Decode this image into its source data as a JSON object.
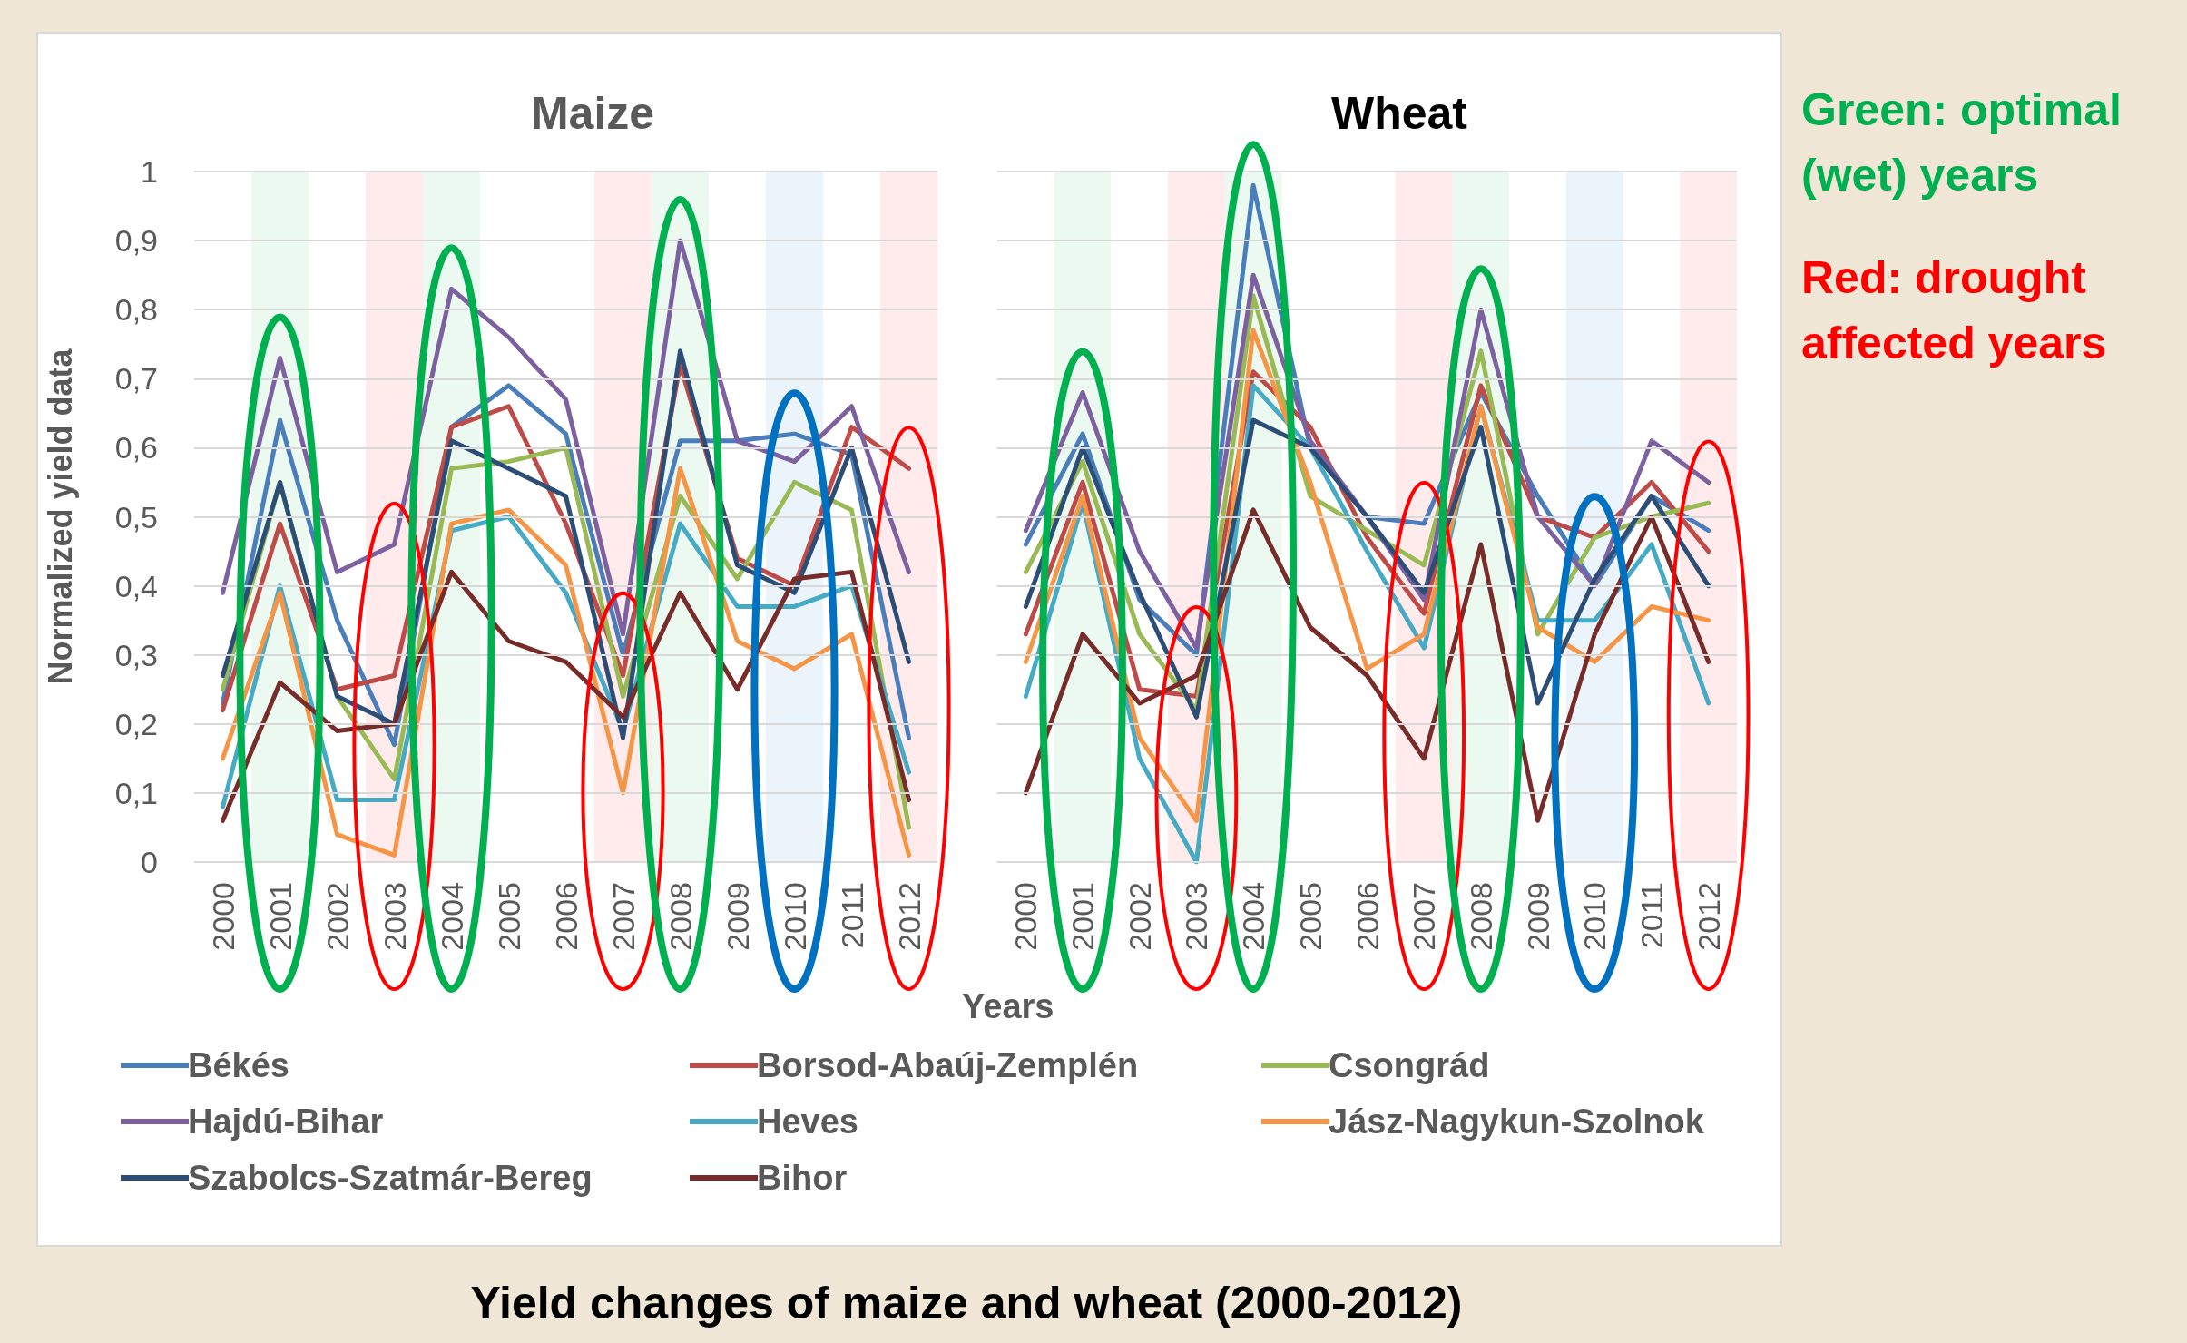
{
  "chart_data": [
    {
      "type": "line",
      "title": "Maize",
      "xlabel": "Years",
      "ylabel": "Normalized yield data",
      "categories": [
        "2000",
        "2001",
        "2002",
        "2003",
        "2004",
        "2005",
        "2006",
        "2007",
        "2008",
        "2009",
        "2010",
        "2011",
        "2012"
      ],
      "series": [
        {
          "name": "Békés",
          "color": "#4a7ebb",
          "values": [
            0.23,
            0.64,
            0.35,
            0.17,
            0.63,
            0.69,
            0.62,
            0.3,
            0.61,
            0.61,
            0.62,
            0.59,
            0.18
          ]
        },
        {
          "name": "Borsod-Abaúj-Zemplén",
          "color": "#be4b48",
          "values": [
            0.22,
            0.49,
            0.25,
            0.27,
            0.63,
            0.66,
            0.49,
            0.27,
            0.72,
            0.44,
            0.4,
            0.63,
            0.57
          ]
        },
        {
          "name": "Csongrád",
          "color": "#98b954",
          "values": [
            0.25,
            0.55,
            0.24,
            0.12,
            0.57,
            0.58,
            0.6,
            0.24,
            0.53,
            0.41,
            0.55,
            0.51,
            0.05
          ]
        },
        {
          "name": "Hajdú-Bihar",
          "color": "#7d60a0",
          "values": [
            0.39,
            0.73,
            0.42,
            0.46,
            0.83,
            0.76,
            0.67,
            0.33,
            0.9,
            0.61,
            0.58,
            0.66,
            0.42
          ]
        },
        {
          "name": "Heves",
          "color": "#46aac5",
          "values": [
            0.08,
            0.4,
            0.09,
            0.09,
            0.48,
            0.5,
            0.39,
            0.19,
            0.49,
            0.37,
            0.37,
            0.4,
            0.13
          ]
        },
        {
          "name": "Jász-Nagykun-Szolnok",
          "color": "#f69546",
          "values": [
            0.15,
            0.39,
            0.04,
            0.01,
            0.49,
            0.51,
            0.43,
            0.1,
            0.57,
            0.32,
            0.28,
            0.33,
            0.01
          ]
        },
        {
          "name": "Szabolcs-Szatmár-Bereg",
          "color": "#2c4d75",
          "values": [
            0.27,
            0.55,
            0.24,
            0.2,
            0.61,
            0.57,
            0.53,
            0.18,
            0.74,
            0.43,
            0.39,
            0.6,
            0.29
          ]
        },
        {
          "name": "Bihor",
          "color": "#772c2a",
          "values": [
            0.06,
            0.26,
            0.19,
            0.2,
            0.42,
            0.32,
            0.29,
            0.21,
            0.39,
            0.25,
            0.41,
            0.42,
            0.09
          ]
        }
      ],
      "ylim": [
        0,
        1
      ],
      "yticks": [
        0,
        {
          "value": 0.1,
          "label": "0,1"
        },
        {
          "value": 0.2,
          "label": "0,2"
        },
        {
          "value": 0.3,
          "label": "0,3"
        },
        {
          "value": 0.4,
          "label": "0,4"
        },
        {
          "value": 0.5,
          "label": "0,5"
        },
        {
          "value": 0.6,
          "label": "0,6"
        },
        {
          "value": 0.7,
          "label": "0,7"
        },
        {
          "value": 0.8,
          "label": "0,8"
        },
        {
          "value": 0.9,
          "label": "0,9"
        },
        1
      ],
      "grid": "y",
      "marker": "none",
      "line_style": "solid",
      "legend": "bottom",
      "bands": [
        {
          "axis": "x",
          "from": "2001",
          "to": "2001",
          "color": "#00b050"
        },
        {
          "axis": "x",
          "from": "2003",
          "to": "2003",
          "color": "#ff0000"
        },
        {
          "axis": "x",
          "from": "2004",
          "to": "2004",
          "color": "#00b050"
        },
        {
          "axis": "x",
          "from": "2007",
          "to": "2007",
          "color": "#ff0000"
        },
        {
          "axis": "x",
          "from": "2008",
          "to": "2008",
          "color": "#00b050"
        },
        {
          "axis": "x",
          "from": "2010",
          "to": "2010",
          "color": "#0070c0"
        },
        {
          "axis": "x",
          "from": "2012",
          "to": "2012",
          "color": "#ff0000"
        }
      ],
      "annotations": [
        "Yield changes of maize and wheat (2000-2012)"
      ]
    },
    {
      "type": "line",
      "title": "Wheat",
      "categories": [
        "2000",
        "2001",
        "2002",
        "2003",
        "2004",
        "2005",
        "2006",
        "2007",
        "2008",
        "2009",
        "2010",
        "2011",
        "2012"
      ],
      "series": [
        {
          "color": "#4a7ebb",
          "values": [
            0.46,
            0.62,
            0.38,
            0.3,
            0.98,
            0.6,
            0.5,
            0.49,
            0.68,
            0.53,
            0.4,
            0.53,
            0.48
          ]
        },
        {
          "color": "#be4b48",
          "values": [
            0.33,
            0.55,
            0.25,
            0.24,
            0.71,
            0.63,
            0.47,
            0.36,
            0.69,
            0.5,
            0.47,
            0.55,
            0.45
          ]
        },
        {
          "color": "#98b954",
          "values": [
            0.42,
            0.58,
            0.33,
            0.22,
            0.82,
            0.53,
            0.48,
            0.43,
            0.74,
            0.33,
            0.47,
            0.5,
            0.52
          ]
        },
        {
          "color": "#7d60a0",
          "values": [
            0.48,
            0.68,
            0.45,
            0.31,
            0.85,
            0.61,
            0.5,
            0.38,
            0.8,
            0.5,
            0.4,
            0.61,
            0.55
          ]
        },
        {
          "color": "#46aac5",
          "values": [
            0.24,
            0.52,
            0.15,
            0.0,
            0.69,
            0.6,
            0.45,
            0.31,
            0.66,
            0.35,
            0.35,
            0.46,
            0.23
          ]
        },
        {
          "color": "#f69546",
          "values": [
            0.29,
            0.53,
            0.18,
            0.06,
            0.77,
            0.55,
            0.28,
            0.33,
            0.66,
            0.34,
            0.29,
            0.37,
            0.35
          ]
        },
        {
          "color": "#2c4d75",
          "values": [
            0.37,
            0.6,
            0.39,
            0.21,
            0.64,
            0.6,
            0.5,
            0.39,
            0.63,
            0.23,
            0.41,
            0.53,
            0.4
          ]
        },
        {
          "color": "#772c2a",
          "values": [
            0.1,
            0.33,
            0.23,
            0.27,
            0.51,
            0.34,
            0.27,
            0.15,
            0.46,
            0.06,
            0.33,
            0.5,
            0.29
          ]
        }
      ],
      "ylim": [
        0,
        1
      ],
      "grid": "y",
      "marker": "none",
      "line_style": "solid",
      "tick_labels": "x",
      "yticks": [
        0,
        0.1,
        0.2,
        0.3,
        0.4,
        0.5,
        0.6,
        0.7,
        0.8,
        0.9,
        1
      ],
      "bands": [
        {
          "axis": "x",
          "from": "2001",
          "to": "2001",
          "color": "#00b050"
        },
        {
          "axis": "x",
          "from": "2003",
          "to": "2003",
          "color": "#ff0000"
        },
        {
          "axis": "x",
          "from": "2004",
          "to": "2004",
          "color": "#00b050"
        },
        {
          "axis": "x",
          "from": "2007",
          "to": "2007",
          "color": "#ff0000"
        },
        {
          "axis": "x",
          "from": "2008",
          "to": "2008",
          "color": "#00b050"
        },
        {
          "axis": "x",
          "from": "2010",
          "to": "2010",
          "color": "#0070c0"
        },
        {
          "axis": "x",
          "from": "2012",
          "to": "2012",
          "color": "#ff0000"
        }
      ],
      "annotations": [
        "Green: optimal (wet) years",
        "Red: drought affected years"
      ]
    }
  ]
}
